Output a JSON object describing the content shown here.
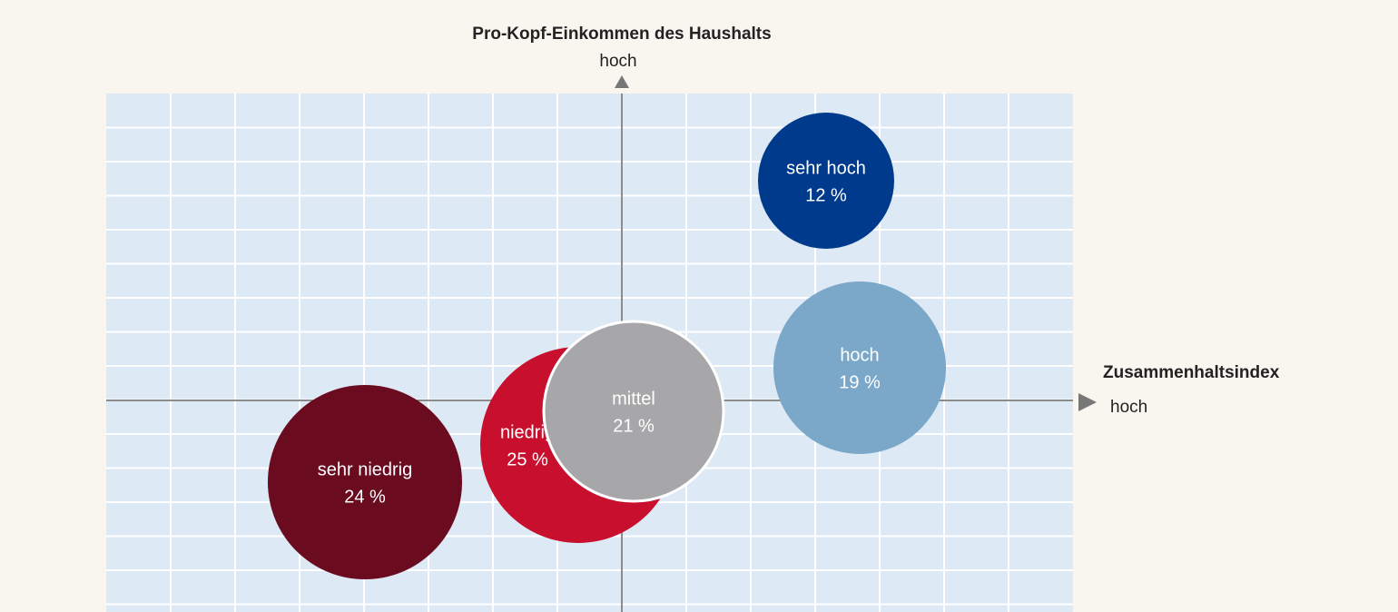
{
  "chart_data": {
    "type": "bubble",
    "y_label": "Pro-Kopf-Einkommen des Haushalts",
    "y_end_label": "hoch",
    "x_label": "Zusammenhaltsindex",
    "x_end_label": "hoch",
    "series": [
      {
        "name": "sehr hoch",
        "value": 12,
        "value_label": "12 %",
        "color": "#003a8c"
      },
      {
        "name": "hoch",
        "value": 19,
        "value_label": "19 %",
        "color": "#7ba8c8"
      },
      {
        "name": "sehr niedrig",
        "value": 24,
        "value_label": "24 %",
        "color": "#6a0b1f"
      },
      {
        "name": "niedrig",
        "value": 25,
        "value_label": "25 %",
        "color": "#c8102e"
      },
      {
        "name": "mittel",
        "value": 21,
        "value_label": "21 %",
        "color": "#a7a7a9"
      }
    ]
  }
}
